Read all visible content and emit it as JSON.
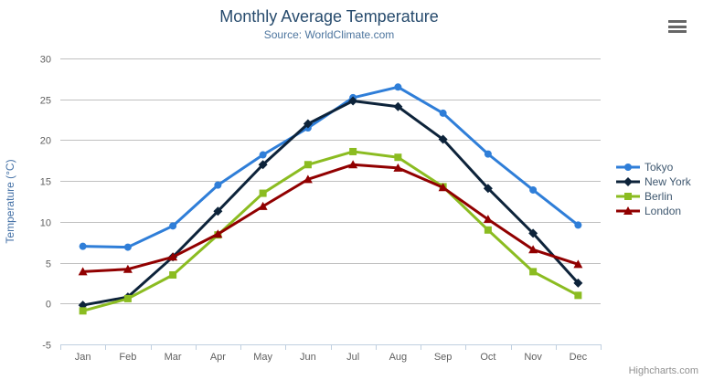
{
  "chart": {
    "title": "Monthly Average Temperature",
    "subtitle": "Source: WorldClimate.com",
    "credits": "Highcharts.com",
    "menu_icon": "hamburger-export-menu"
  },
  "theme": {
    "title_color": "#274b6d",
    "subtitle_color": "#4d759e",
    "axis_label_color": "#606060",
    "axis_title_color": "#4572A7",
    "axis_line_color": "#C0D0E0",
    "grid_color": "#C0C0C0",
    "legend_text_color": "#3E576F",
    "credits_color": "#909090",
    "menu_icon_color": "#666666",
    "background": "#FFFFFF"
  },
  "chart_data": {
    "type": "line",
    "title": "Monthly Average Temperature",
    "subtitle": "Source: WorldClimate.com",
    "categories": [
      "Jan",
      "Feb",
      "Mar",
      "Apr",
      "May",
      "Jun",
      "Jul",
      "Aug",
      "Sep",
      "Oct",
      "Nov",
      "Dec"
    ],
    "series": [
      {
        "name": "Tokyo",
        "color": "#2f7ed8",
        "symbol": "circle",
        "values": [
          7.0,
          6.9,
          9.5,
          14.5,
          18.2,
          21.5,
          25.2,
          26.5,
          23.3,
          18.3,
          13.9,
          9.6
        ]
      },
      {
        "name": "New York",
        "color": "#0d233a",
        "symbol": "diamond",
        "values": [
          -0.2,
          0.8,
          5.7,
          11.3,
          17.0,
          22.0,
          24.8,
          24.1,
          20.1,
          14.1,
          8.6,
          2.5
        ]
      },
      {
        "name": "Berlin",
        "color": "#8bbc21",
        "symbol": "square",
        "values": [
          -0.9,
          0.6,
          3.5,
          8.4,
          13.5,
          17.0,
          18.6,
          17.9,
          14.3,
          9.0,
          3.9,
          1.0
        ]
      },
      {
        "name": "London",
        "color": "#910000",
        "symbol": "triangle",
        "values": [
          3.9,
          4.2,
          5.7,
          8.5,
          11.9,
          15.2,
          17.0,
          16.6,
          14.2,
          10.3,
          6.6,
          4.8
        ]
      }
    ],
    "xlabel": "",
    "ylabel": "Temperature (°C)",
    "ylim": [
      -5,
      30
    ],
    "ytick_interval": 5,
    "yticks": [
      -5,
      0,
      5,
      10,
      15,
      20,
      25,
      30
    ],
    "grid": "horizontal-only",
    "legend_position": "right",
    "marker_on_every_point": true
  }
}
